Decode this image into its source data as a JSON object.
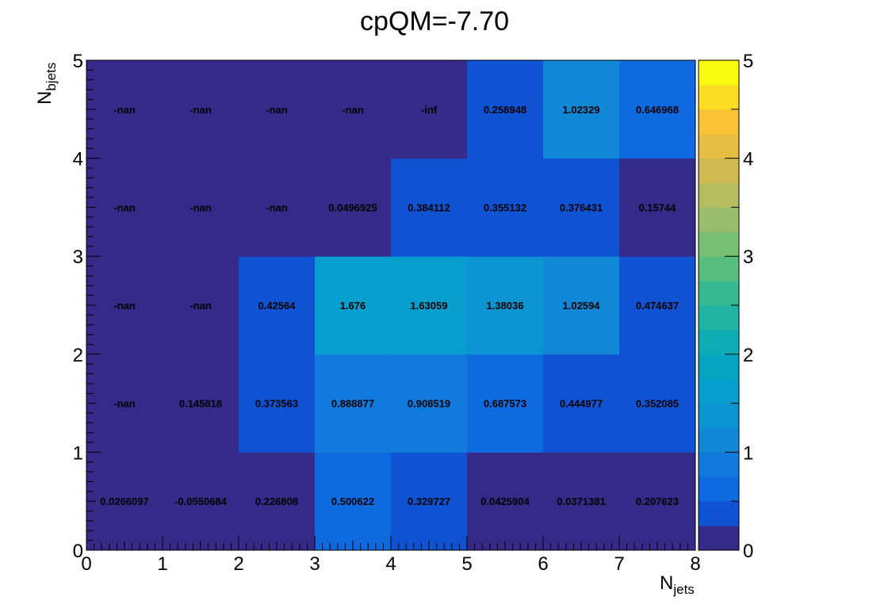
{
  "chart_data": {
    "type": "heatmap",
    "title": "cpQM=-7.70",
    "xlabel": {
      "main": "N",
      "sub": "jets"
    },
    "ylabel": {
      "main": "N",
      "sub": "bjets"
    },
    "x_edges": [
      0,
      1,
      2,
      3,
      4,
      5,
      6,
      7,
      8
    ],
    "y_edges": [
      0,
      1,
      2,
      3,
      4,
      5
    ],
    "x_ticks": [
      "0",
      "1",
      "2",
      "3",
      "4",
      "5",
      "6",
      "7",
      "8"
    ],
    "y_ticks": [
      "0",
      "1",
      "2",
      "3",
      "4",
      "5"
    ],
    "zlim": [
      0,
      5
    ],
    "z_ticks": [
      "0",
      "1",
      "2",
      "3",
      "4",
      "5"
    ],
    "colormap": "parula",
    "rows": [
      {
        "y": 0,
        "labels": [
          "0.0266097",
          "-0.0550684",
          "0.226808",
          "0.500622",
          "0.329727",
          "0.0425904",
          "0.0371381",
          "0.207623"
        ],
        "values": [
          0.0266097,
          -0.0550684,
          0.226808,
          0.500622,
          0.329727,
          0.0425904,
          0.0371381,
          0.207623
        ]
      },
      {
        "y": 1,
        "labels": [
          "-nan",
          "0.145818",
          "0.373563",
          "0.888877",
          "0.908519",
          "0.687573",
          "0.444977",
          "0.352085"
        ],
        "values": [
          null,
          0.145818,
          0.373563,
          0.888877,
          0.908519,
          0.687573,
          0.444977,
          0.352085
        ]
      },
      {
        "y": 2,
        "labels": [
          "-nan",
          "-nan",
          "0.42564",
          "1.676",
          "1.63059",
          "1.38036",
          "1.02594",
          "0.474637"
        ],
        "values": [
          null,
          null,
          0.42564,
          1.676,
          1.63059,
          1.38036,
          1.02594,
          0.474637
        ]
      },
      {
        "y": 3,
        "labels": [
          "-nan",
          "-nan",
          "-nan",
          "0.0496925",
          "0.384112",
          "0.355132",
          "0.376431",
          "0.15744"
        ],
        "values": [
          null,
          null,
          null,
          0.0496925,
          0.384112,
          0.355132,
          0.376431,
          0.15744
        ]
      },
      {
        "y": 4,
        "labels": [
          "-nan",
          "-nan",
          "-nan",
          "-nan",
          "-inf",
          "0.258948",
          "1.02329",
          "0.646968"
        ],
        "values": [
          null,
          null,
          null,
          null,
          null,
          0.258948,
          1.02329,
          0.646968
        ]
      }
    ]
  }
}
